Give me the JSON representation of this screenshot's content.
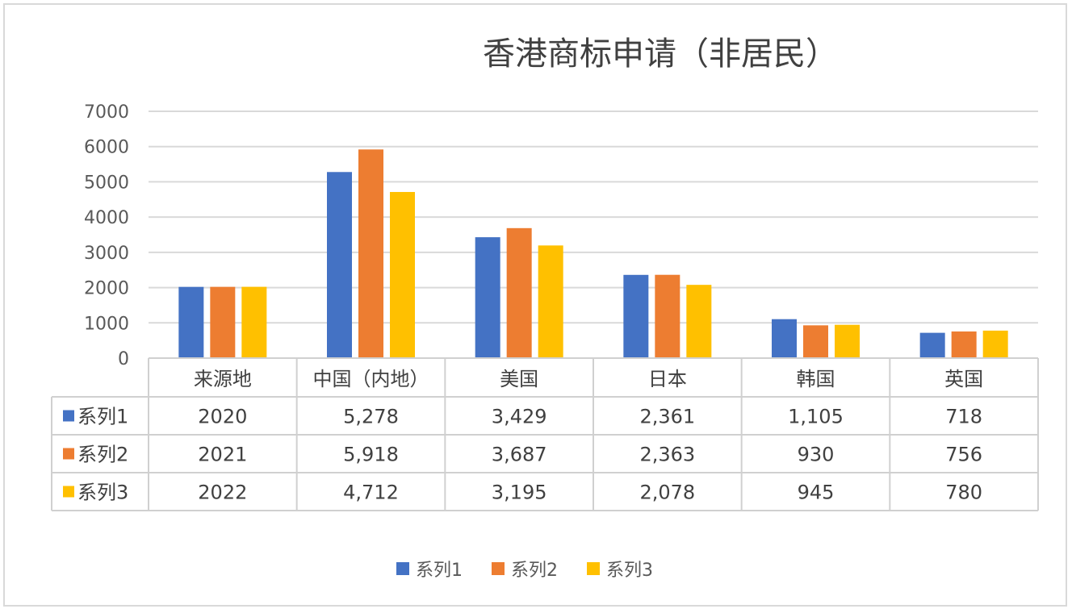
{
  "chart_data": {
    "type": "bar",
    "title": "香港商标申请（非居民）",
    "categories": [
      "来源地",
      "中国（内地）",
      "美国",
      "日本",
      "韩国",
      "英国"
    ],
    "series": [
      {
        "name": "系列1",
        "color": "#4472C4",
        "values": [
          2020,
          5278,
          3429,
          2361,
          1105,
          718
        ],
        "labels": [
          "2020",
          "5,278",
          "3,429",
          "2,361",
          "1,105",
          "718"
        ]
      },
      {
        "name": "系列2",
        "color": "#ED7D31",
        "values": [
          2021,
          5918,
          3687,
          2363,
          930,
          756
        ],
        "labels": [
          "2021",
          "5,918",
          "3,687",
          "2,363",
          "930",
          "756"
        ]
      },
      {
        "name": "系列3",
        "color": "#FFC000",
        "values": [
          2022,
          4712,
          3195,
          2078,
          945,
          780
        ],
        "labels": [
          "2022",
          "4,712",
          "3,195",
          "2,078",
          "945",
          "780"
        ]
      }
    ],
    "ylim": [
      0,
      7000
    ],
    "yticks": [
      0,
      1000,
      2000,
      3000,
      4000,
      5000,
      6000,
      7000
    ],
    "grid": true,
    "data_table": true,
    "legend": "bottom"
  }
}
